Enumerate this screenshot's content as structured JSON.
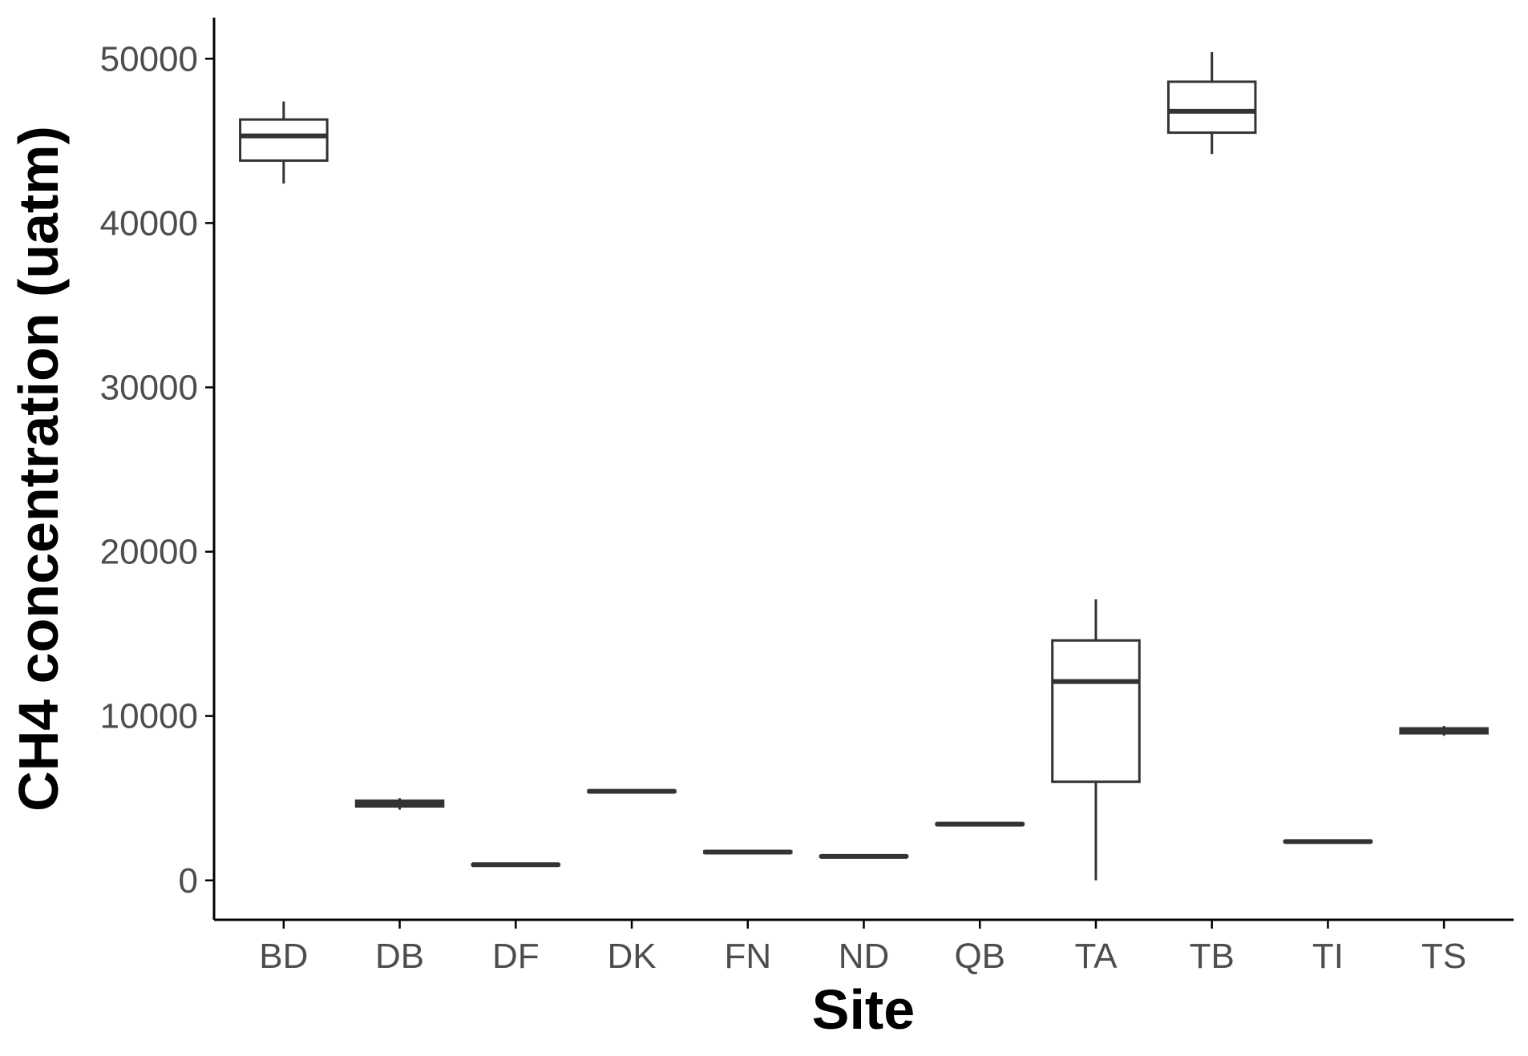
{
  "chart_data": {
    "type": "box",
    "title": "",
    "xlabel": "Site",
    "ylabel": "CH4 concentration (uatm)",
    "ylim": [
      -2400,
      52500
    ],
    "yticks": [
      0,
      10000,
      20000,
      30000,
      40000,
      50000
    ],
    "ytick_labels": [
      "0",
      "10000",
      "20000",
      "30000",
      "40000",
      "50000"
    ],
    "grid": false,
    "legend": "none",
    "categories": [
      "BD",
      "DB",
      "DF",
      "DK",
      "FN",
      "ND",
      "QB",
      "TA",
      "TB",
      "TI",
      "TS"
    ],
    "boxes": [
      {
        "category": "BD",
        "min": 42400,
        "q1": 43800,
        "median": 45300,
        "q3": 46300,
        "max": 47400
      },
      {
        "category": "DB",
        "min": 4300,
        "q1": 4500,
        "median": 4700,
        "q3": 4850,
        "max": 5000
      },
      {
        "category": "DF",
        "min": 900,
        "q1": 920,
        "median": 950,
        "q3": 980,
        "max": 1000
      },
      {
        "category": "DK",
        "min": 5350,
        "q1": 5380,
        "median": 5420,
        "q3": 5460,
        "max": 5500
      },
      {
        "category": "FN",
        "min": 1650,
        "q1": 1680,
        "median": 1720,
        "q3": 1760,
        "max": 1800
      },
      {
        "category": "ND",
        "min": 1400,
        "q1": 1430,
        "median": 1460,
        "q3": 1490,
        "max": 1520
      },
      {
        "category": "QB",
        "min": 3350,
        "q1": 3380,
        "median": 3420,
        "q3": 3460,
        "max": 3500
      },
      {
        "category": "TA",
        "min": 0,
        "q1": 6000,
        "median": 12100,
        "q3": 14600,
        "max": 17100
      },
      {
        "category": "TB",
        "min": 44200,
        "q1": 45500,
        "median": 46800,
        "q3": 48600,
        "max": 50400
      },
      {
        "category": "TI",
        "min": 2300,
        "q1": 2330,
        "median": 2360,
        "q3": 2400,
        "max": 2450
      },
      {
        "category": "TS",
        "min": 8800,
        "q1": 8950,
        "median": 9100,
        "q3": 9250,
        "max": 9400
      }
    ],
    "colors": {
      "box_stroke": "#333333",
      "box_fill": "#ffffff",
      "axis": "#000000",
      "tick_text": "#4d4d4d",
      "title_text": "#000000"
    }
  }
}
